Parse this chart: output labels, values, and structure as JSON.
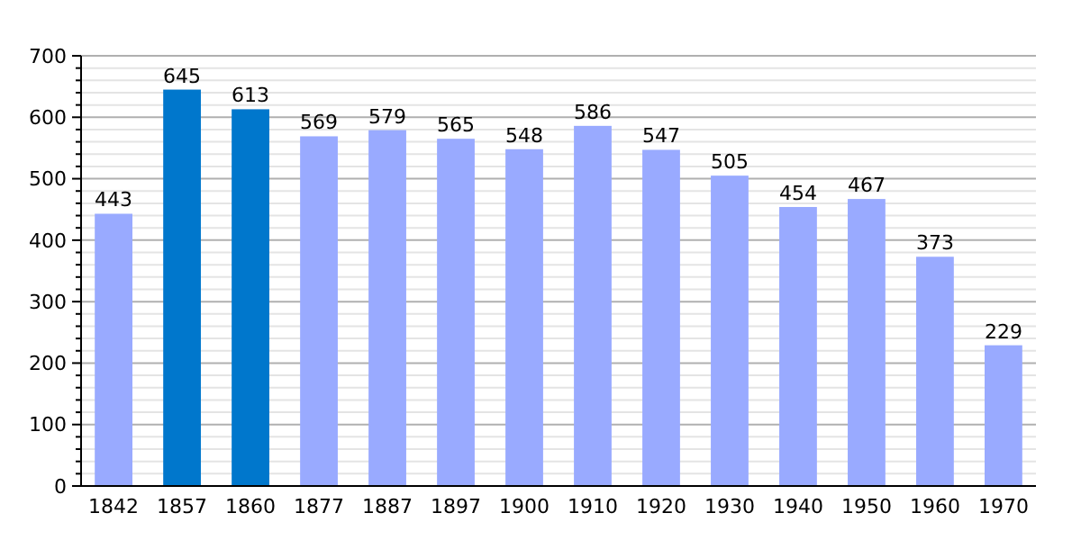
{
  "chart_data": {
    "type": "bar",
    "categories": [
      "1842",
      "1857",
      "1860",
      "1877",
      "1887",
      "1897",
      "1900",
      "1910",
      "1920",
      "1930",
      "1940",
      "1950",
      "1960",
      "1970"
    ],
    "values": [
      443,
      645,
      613,
      569,
      579,
      565,
      548,
      586,
      547,
      505,
      454,
      467,
      373,
      229
    ],
    "colors": [
      "#99aaff",
      "#0077cc",
      "#0077cc",
      "#99aaff",
      "#99aaff",
      "#99aaff",
      "#99aaff",
      "#99aaff",
      "#99aaff",
      "#99aaff",
      "#99aaff",
      "#99aaff",
      "#99aaff",
      "#99aaff"
    ],
    "data_labels": true,
    "ylim": [
      0,
      700
    ],
    "yticks": [
      0,
      {
        "value": 20,
        "label": null
      },
      {
        "value": 40,
        "label": null
      },
      {
        "value": 60,
        "label": null
      },
      {
        "value": 80,
        "label": null
      },
      100,
      {
        "value": 120,
        "label": null
      },
      {
        "value": 140,
        "label": null
      },
      {
        "value": 160,
        "label": null
      },
      {
        "value": 180,
        "label": null
      },
      200,
      {
        "value": 220,
        "label": null
      },
      {
        "value": 240,
        "label": null
      },
      {
        "value": 260,
        "label": null
      },
      {
        "value": 280,
        "label": null
      },
      300,
      {
        "value": 320,
        "label": null
      },
      {
        "value": 340,
        "label": null
      },
      {
        "value": 360,
        "label": null
      },
      {
        "value": 380,
        "label": null
      },
      400,
      {
        "value": 420,
        "label": null
      },
      {
        "value": 440,
        "label": null
      },
      {
        "value": 460,
        "label": null
      },
      {
        "value": 480,
        "label": null
      },
      500,
      {
        "value": 520,
        "label": null
      },
      {
        "value": 540,
        "label": null
      },
      {
        "value": 560,
        "label": null
      },
      {
        "value": 580,
        "label": null
      },
      600,
      {
        "value": 620,
        "label": null
      },
      {
        "value": 640,
        "label": null
      },
      {
        "value": 660,
        "label": null
      },
      {
        "value": 680,
        "label": null
      },
      700
    ],
    "grid": "y"
  }
}
